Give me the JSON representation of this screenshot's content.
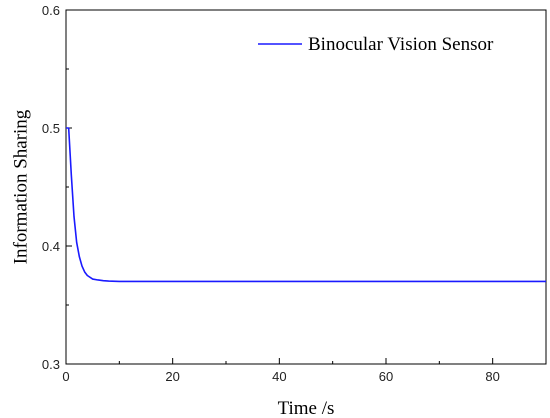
{
  "chart_data": {
    "type": "line",
    "xlabel": "Time /s",
    "ylabel": "Information Sharing",
    "xlim": [
      0,
      90
    ],
    "ylim": [
      0.3,
      0.6
    ],
    "xticks": [
      0,
      20,
      40,
      60,
      80
    ],
    "yticks": [
      0.3,
      0.4,
      0.5,
      0.6
    ],
    "xtick_labels": [
      "0",
      "20",
      "40",
      "60",
      "80"
    ],
    "ytick_labels": [
      "0.3",
      "0.4",
      "0.5",
      "0.6"
    ],
    "grid": false,
    "legend_position": "top-right",
    "series": [
      {
        "name": "Binocular Vision Sensor",
        "color": "#1a1aff",
        "x": [
          0,
          0.5,
          1,
          1.5,
          2,
          2.5,
          3,
          3.5,
          4,
          5,
          6,
          7,
          8,
          10,
          15,
          20,
          30,
          40,
          50,
          60,
          70,
          80,
          90
        ],
        "y": [
          0.5,
          0.5,
          0.46,
          0.425,
          0.403,
          0.391,
          0.383,
          0.378,
          0.375,
          0.372,
          0.3712,
          0.3706,
          0.3703,
          0.37,
          0.37,
          0.37,
          0.37,
          0.37,
          0.37,
          0.37,
          0.37,
          0.37,
          0.37
        ]
      }
    ]
  }
}
